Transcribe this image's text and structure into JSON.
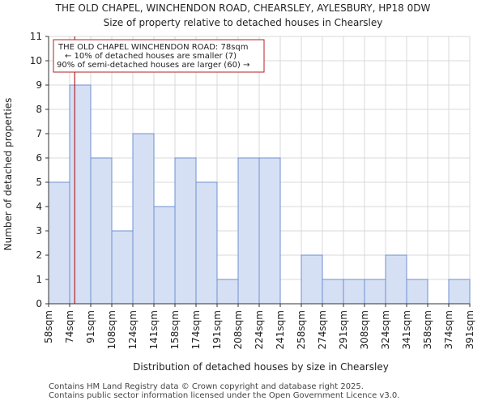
{
  "chart_data": {
    "type": "bar",
    "title": "THE OLD CHAPEL, WINCHENDON ROAD, CHEARSLEY, AYLESBURY, HP18 0DW",
    "subtitle": "Size of property relative to detached houses in Chearsley",
    "xlabel": "Distribution of detached houses by size in Chearsley",
    "ylabel": "Number of detached properties",
    "ylim": [
      0,
      11
    ],
    "yticks": [
      0,
      1,
      2,
      3,
      4,
      5,
      6,
      7,
      8,
      9,
      10,
      11
    ],
    "bin_edges": [
      "58sqm",
      "74sqm",
      "91sqm",
      "108sqm",
      "124sqm",
      "141sqm",
      "158sqm",
      "174sqm",
      "191sqm",
      "208sqm",
      "224sqm",
      "241sqm",
      "258sqm",
      "274sqm",
      "291sqm",
      "308sqm",
      "324sqm",
      "341sqm",
      "358sqm",
      "374sqm",
      "391sqm"
    ],
    "values": [
      5,
      9,
      6,
      3,
      7,
      4,
      6,
      5,
      1,
      6,
      6,
      0,
      2,
      1,
      1,
      1,
      2,
      1,
      0,
      1
    ],
    "marker_value": 78,
    "marker_bin_index": 1.24,
    "bar_color": "#d6e0f5",
    "bar_edge_color": "#6f8fcf",
    "marker_color": "#b22222",
    "annotation": {
      "line1": "THE OLD CHAPEL WINCHENDON ROAD: 78sqm",
      "line2": "← 10% of detached houses are smaller (7)",
      "line3": "90% of semi-detached houses are larger (60) →"
    }
  },
  "footer": {
    "line1": "Contains HM Land Registry data © Crown copyright and database right 2025.",
    "line2": "Contains public sector information licensed under the Open Government Licence v3.0."
  }
}
